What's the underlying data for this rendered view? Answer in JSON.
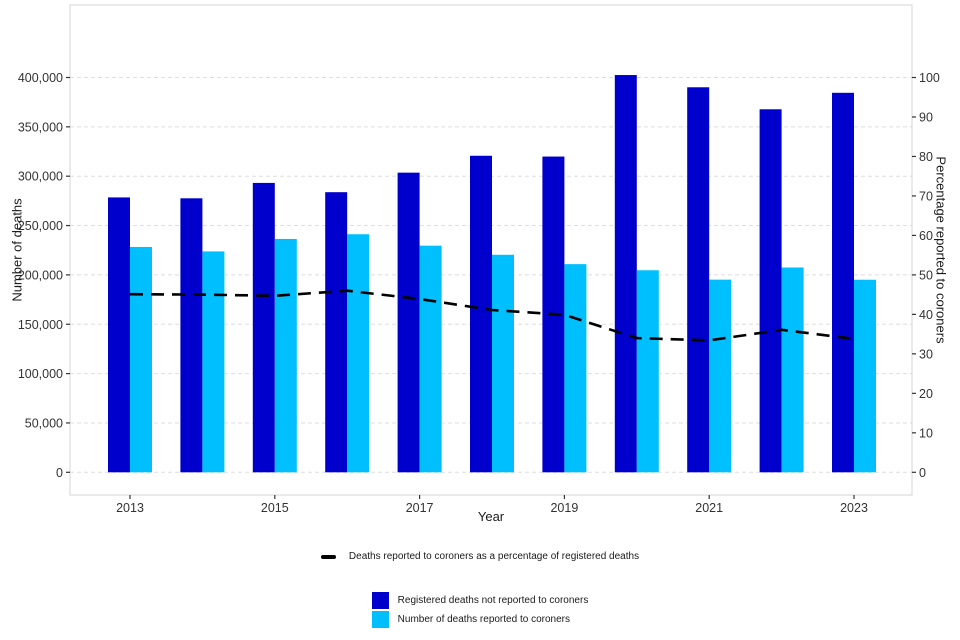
{
  "chart_data": {
    "type": "bar",
    "subtype": "grouped bars with dashed line on secondary axis",
    "title": "",
    "xlabel": "Year",
    "ylabel_left": "Number of deaths",
    "ylabel_right": "Percentage reported to coroners",
    "categories": [
      "2013",
      "2014",
      "2015",
      "2016",
      "2017",
      "2018",
      "2019",
      "2020",
      "2021",
      "2022",
      "2023"
    ],
    "x_tick_labels": [
      "2013",
      "2015",
      "2017",
      "2019",
      "2021",
      "2023"
    ],
    "ylim_left": [
      0,
      400000
    ],
    "yticks_left_labels": [
      "0",
      "50,000",
      "100,000",
      "150,000",
      "200,000",
      "250,000",
      "300,000",
      "350,000",
      "400,000"
    ],
    "ylim_right": [
      0,
      100
    ],
    "yticks_right_labels": [
      "0",
      "10",
      "20",
      "30",
      "40",
      "50",
      "60",
      "70",
      "80",
      "90",
      "100"
    ],
    "grid": "horizontal dashed gridlines at left-axis breaks",
    "legend_position": "bottom",
    "series": [
      {
        "name": "Registered deaths not reported to coroners",
        "color": "#0000cd",
        "values": [
          278500,
          277600,
          293200,
          283800,
          303600,
          320700,
          319900,
          402500,
          390100,
          367800,
          384500
        ]
      },
      {
        "name": "Number of deaths reported to coroners",
        "color": "#00bfff",
        "values": [
          228300,
          223800,
          236400,
          241200,
          229600,
          220400,
          210900,
          204700,
          195200,
          207500,
          195100
        ]
      }
    ],
    "line_series": {
      "name": "Deaths reported to coroners as a percentage of registered deaths",
      "color": "#000000",
      "style": "dashed",
      "axis": "right",
      "values": [
        45.1,
        45.0,
        44.7,
        46.0,
        43.9,
        41.1,
        39.9,
        34.0,
        33.4,
        36.1,
        33.8
      ]
    }
  },
  "colors": {
    "grid": "#dedede",
    "panel_border": "#d4d4d4",
    "tick": "#333333",
    "tick_label": "#333333"
  }
}
